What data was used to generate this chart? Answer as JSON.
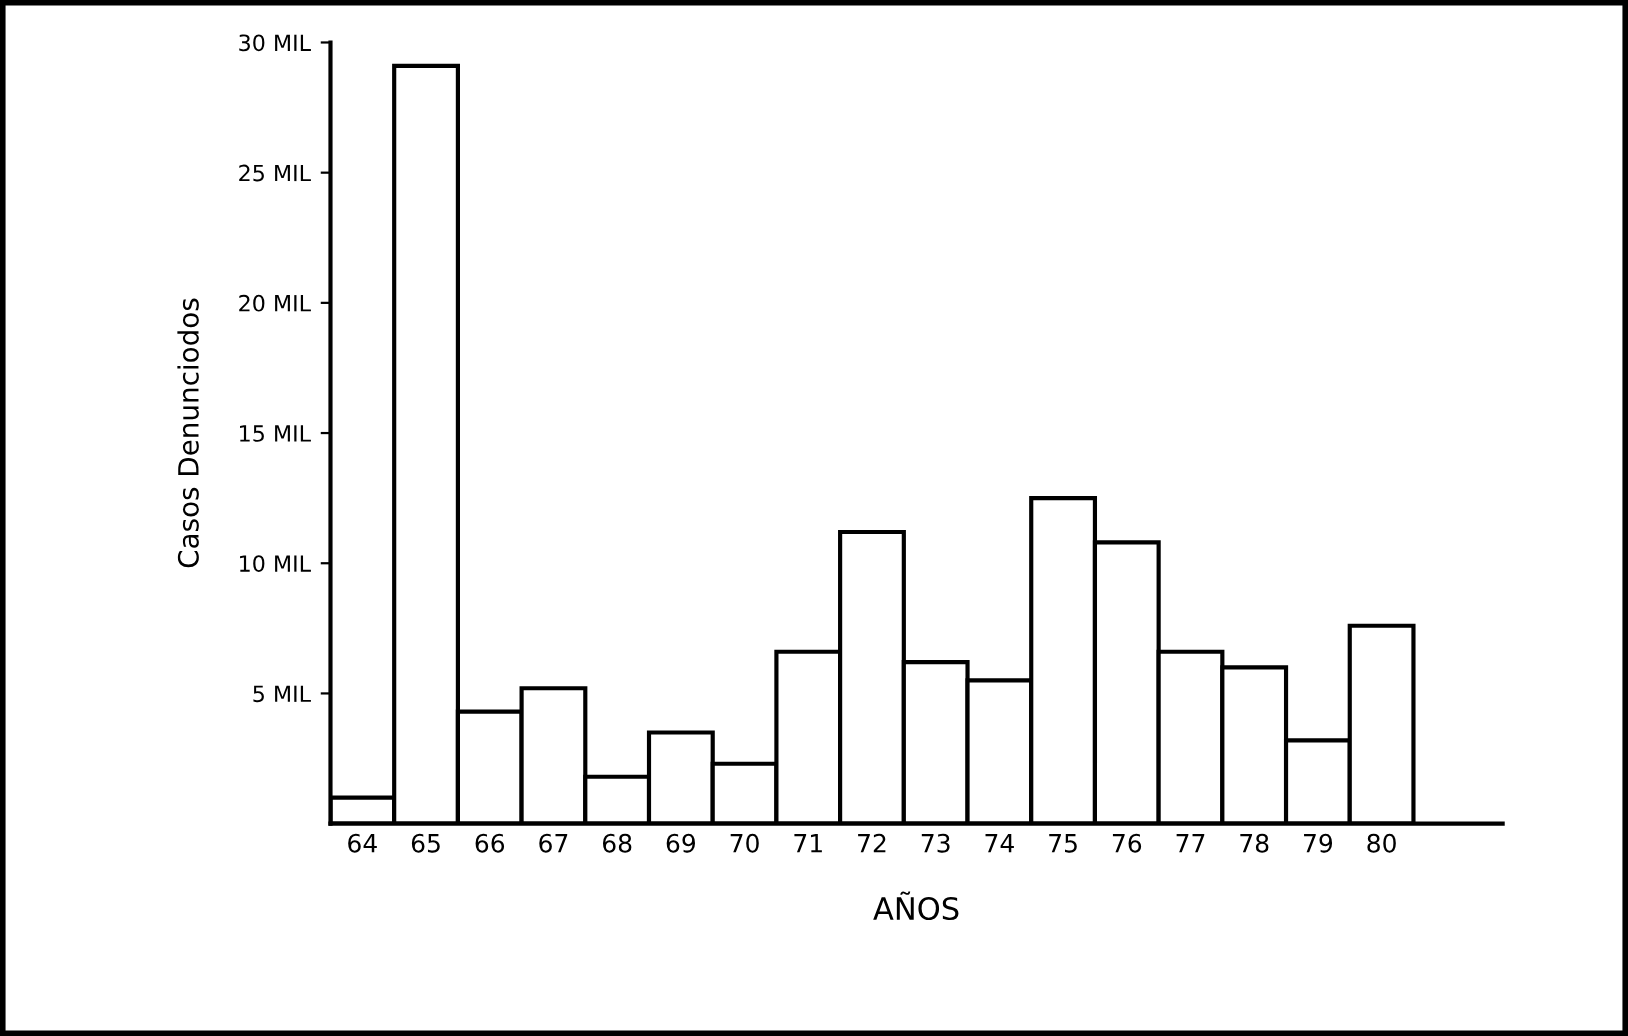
{
  "chart_data": {
    "type": "bar",
    "xlabel": "AÑOS",
    "ylabel": "Casos Denunciodos",
    "categories": [
      "64",
      "65",
      "66",
      "67",
      "68",
      "69",
      "70",
      "71",
      "72",
      "73",
      "74",
      "75",
      "76",
      "77",
      "78",
      "79",
      "80"
    ],
    "values": [
      1.0,
      29.1,
      4.3,
      5.2,
      1.8,
      3.5,
      2.3,
      6.6,
      11.2,
      6.2,
      5.5,
      12.5,
      10.8,
      6.6,
      6.0,
      3.2,
      7.6
    ],
    "color": "#ffffff",
    "ylim": [
      0,
      30
    ],
    "yticks": [
      {
        "value": 5,
        "label": "5 MIL"
      },
      {
        "value": 10,
        "label": "10 MIL"
      },
      {
        "value": 15,
        "label": "15 MIL"
      },
      {
        "value": 20,
        "label": "20 MIL"
      },
      {
        "value": 25,
        "label": "25 MIL"
      },
      {
        "value": 30,
        "label": "30 MIL"
      }
    ],
    "grid": false
  }
}
